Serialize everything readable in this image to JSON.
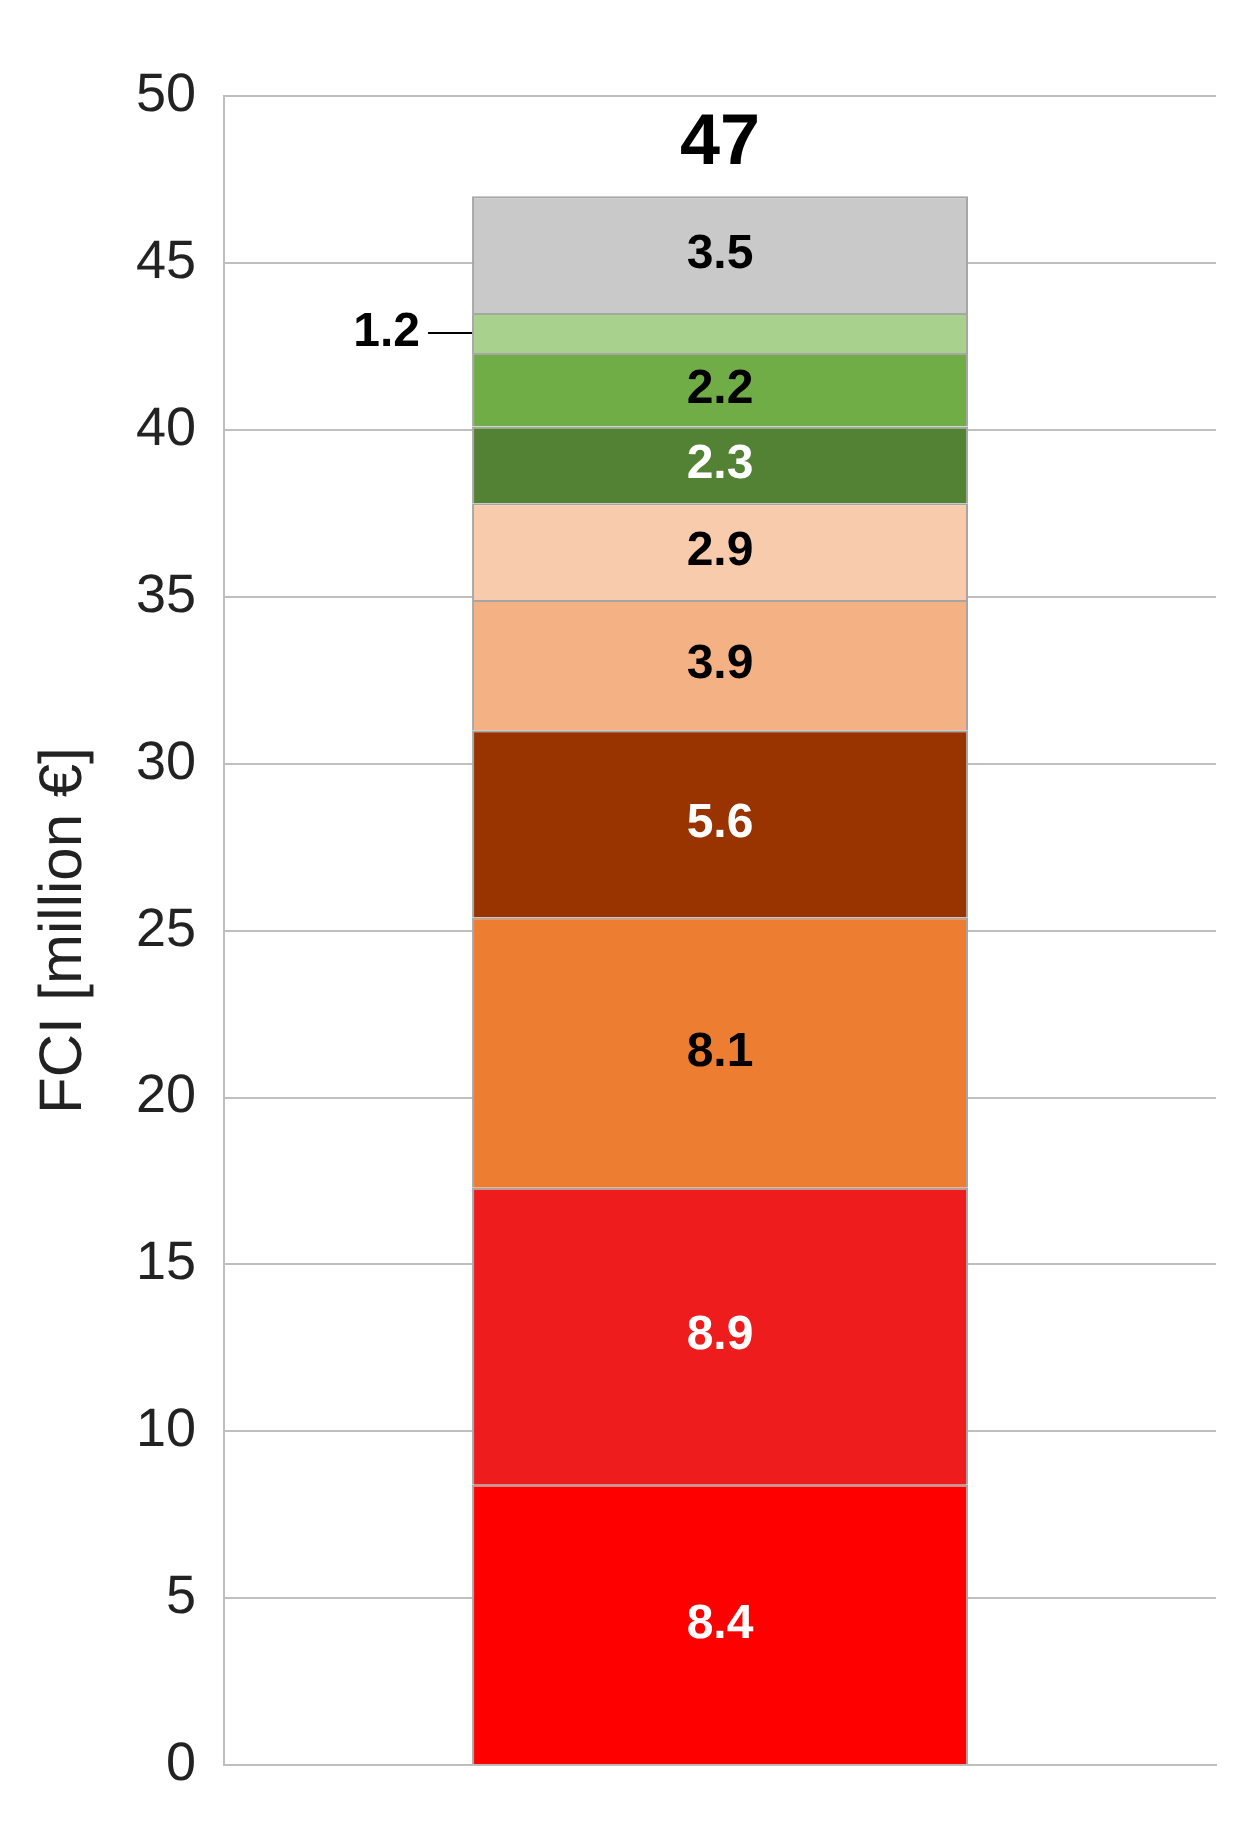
{
  "chart_data": {
    "type": "bar",
    "stacked": true,
    "categories": [
      null
    ],
    "ylabel": "FCI [million €]",
    "ylim": [
      0,
      50
    ],
    "yticks": [
      0,
      5,
      10,
      15,
      20,
      25,
      30,
      35,
      40,
      45,
      50
    ],
    "grid": "y",
    "legend": false,
    "data_labels": true,
    "totals": [
      "47"
    ],
    "series": [
      {
        "color": "#ff0000",
        "values": [
          8.4
        ]
      },
      {
        "color": "#ee1c1c",
        "values": [
          8.9
        ]
      },
      {
        "color": "#ed7d31",
        "values": [
          8.1
        ]
      },
      {
        "color": "#993300",
        "values": [
          5.6
        ]
      },
      {
        "color": "#f4b183",
        "values": [
          3.9
        ]
      },
      {
        "color": "#f8cbad",
        "values": [
          2.9
        ]
      },
      {
        "color": "#548235",
        "values": [
          2.3
        ]
      },
      {
        "color": "#70ad47",
        "values": [
          2.2
        ]
      },
      {
        "color": "#a9d18e",
        "values": [
          1.2
        ]
      },
      {
        "color": "#c9c9c9",
        "values": [
          3.5
        ]
      }
    ]
  }
}
